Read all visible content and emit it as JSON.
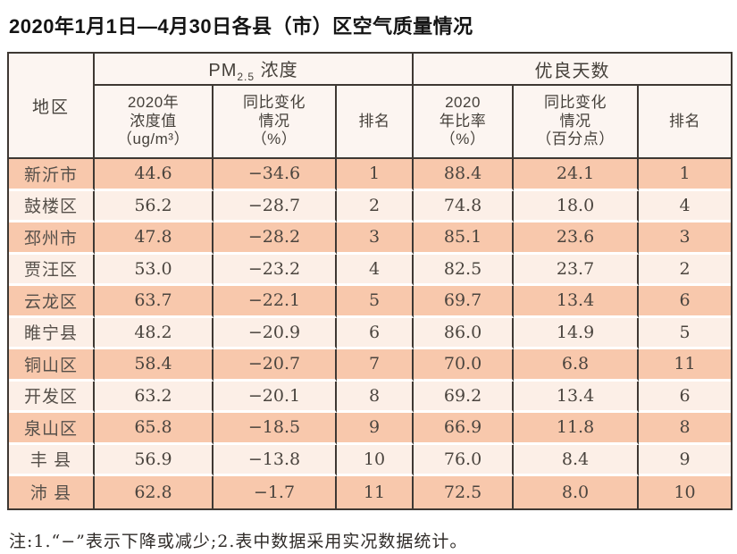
{
  "page": {
    "title": "2020年1月1日—4月30日各县（市）区空气质量情况",
    "note": "注:1.“−”表示下降或减少;2.表中数据采用实况数据统计。"
  },
  "table": {
    "region_header": "地区",
    "pm_group": {
      "prefix": "PM",
      "sub": "2.5",
      "suffix": " 浓度"
    },
    "days_group_label": "优良天数",
    "sub_headers": [
      "2020年\n浓度值\n（ug/m³）",
      "同比变化\n情况\n（%）",
      "排名",
      "2020\n年比率\n（%）",
      "同比变化\n情况\n（百分点）",
      "排名"
    ],
    "rows": [
      {
        "region": "新沂市",
        "pm_value": "44.6",
        "pm_change": "−34.6",
        "pm_rank": "1",
        "days_ratio": "88.4",
        "days_change": "24.1",
        "days_rank": "1"
      },
      {
        "region": "鼓楼区",
        "pm_value": "56.2",
        "pm_change": "−28.7",
        "pm_rank": "2",
        "days_ratio": "74.8",
        "days_change": "18.0",
        "days_rank": "4"
      },
      {
        "region": "邳州市",
        "pm_value": "47.8",
        "pm_change": "−28.2",
        "pm_rank": "3",
        "days_ratio": "85.1",
        "days_change": "23.6",
        "days_rank": "3"
      },
      {
        "region": "贾汪区",
        "pm_value": "53.0",
        "pm_change": "−23.2",
        "pm_rank": "4",
        "days_ratio": "82.5",
        "days_change": "23.7",
        "days_rank": "2"
      },
      {
        "region": "云龙区",
        "pm_value": "63.7",
        "pm_change": "−22.1",
        "pm_rank": "5",
        "days_ratio": "69.7",
        "days_change": "13.4",
        "days_rank": "6"
      },
      {
        "region": "睢宁县",
        "pm_value": "48.2",
        "pm_change": "−20.9",
        "pm_rank": "6",
        "days_ratio": "86.0",
        "days_change": "14.9",
        "days_rank": "5"
      },
      {
        "region": "铜山区",
        "pm_value": "58.4",
        "pm_change": "−20.7",
        "pm_rank": "7",
        "days_ratio": "70.0",
        "days_change": "6.8",
        "days_rank": "11"
      },
      {
        "region": "开发区",
        "pm_value": "63.2",
        "pm_change": "−20.1",
        "pm_rank": "8",
        "days_ratio": "69.2",
        "days_change": "13.4",
        "days_rank": "6"
      },
      {
        "region": "泉山区",
        "pm_value": "65.8",
        "pm_change": "−18.5",
        "pm_rank": "9",
        "days_ratio": "66.9",
        "days_change": "11.8",
        "days_rank": "8"
      },
      {
        "region": "丰 县",
        "pm_value": "56.9",
        "pm_change": "−13.8",
        "pm_rank": "10",
        "days_ratio": "76.0",
        "days_change": "8.4",
        "days_rank": "9"
      },
      {
        "region": "沛 县",
        "pm_value": "62.8",
        "pm_change": "−1.7",
        "pm_rank": "11",
        "days_ratio": "72.5",
        "days_change": "8.0",
        "days_rank": "10"
      }
    ]
  },
  "colors": {
    "row_salmon": "#f8c8ac",
    "row_light": "#fcefe7",
    "header_bg": "#fcf5f1",
    "line": "#3e3833",
    "gap": "#ffffff",
    "cell_text": "#4a443e",
    "region_text": "#56504a",
    "header_text": "#45403a",
    "title_text": "#141414",
    "note_text": "#2f2b28"
  }
}
